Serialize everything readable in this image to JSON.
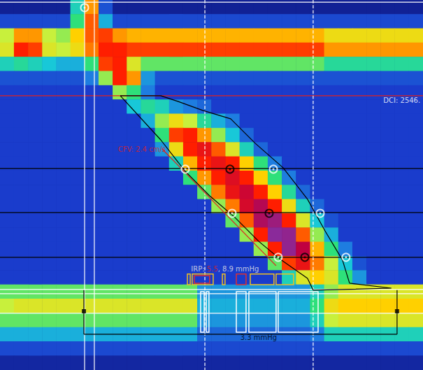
{
  "chart_data": {
    "type": "heatmap",
    "tick_labels": false,
    "xlim": [
      0,
      30
    ],
    "ylim": [
      26,
      0
    ],
    "color_range": [
      0,
      150
    ],
    "cells": [
      [
        6,
        6,
        6,
        6,
        6,
        50,
        100,
        20,
        6,
        6,
        6,
        6,
        6,
        6,
        6,
        6,
        6,
        6,
        6,
        6,
        6,
        6,
        6,
        6,
        6,
        6,
        6,
        6,
        6,
        6
      ],
      [
        18,
        18,
        18,
        18,
        18,
        60,
        110,
        40,
        18,
        18,
        18,
        18,
        18,
        18,
        18,
        18,
        18,
        18,
        18,
        18,
        18,
        18,
        18,
        18,
        18,
        18,
        18,
        18,
        18,
        18
      ],
      [
        75,
        100,
        100,
        75,
        70,
        90,
        110,
        115,
        100,
        95,
        95,
        95,
        95,
        95,
        95,
        95,
        95,
        95,
        95,
        95,
        95,
        95,
        95,
        85,
        85,
        85,
        85,
        85,
        85,
        85
      ],
      [
        80,
        120,
        115,
        80,
        75,
        85,
        105,
        120,
        120,
        115,
        115,
        115,
        115,
        115,
        115,
        115,
        115,
        115,
        115,
        115,
        115,
        115,
        115,
        100,
        100,
        100,
        100,
        100,
        100,
        100
      ],
      [
        50,
        55,
        50,
        45,
        40,
        40,
        60,
        115,
        120,
        80,
        65,
        65,
        65,
        65,
        65,
        65,
        65,
        65,
        65,
        65,
        65,
        65,
        65,
        55,
        55,
        55,
        55,
        55,
        55,
        55
      ],
      [
        20,
        20,
        20,
        20,
        20,
        20,
        30,
        70,
        120,
        100,
        35,
        20,
        20,
        20,
        20,
        20,
        20,
        20,
        20,
        20,
        20,
        20,
        20,
        20,
        20,
        20,
        20,
        20,
        20,
        20
      ],
      [
        15,
        15,
        15,
        15,
        15,
        15,
        15,
        15,
        70,
        60,
        30,
        15,
        15,
        15,
        15,
        15,
        15,
        15,
        15,
        15,
        15,
        15,
        15,
        15,
        15,
        15,
        15,
        15,
        15,
        15
      ],
      [
        15,
        15,
        15,
        15,
        15,
        15,
        15,
        15,
        15,
        45,
        55,
        50,
        35,
        30,
        25,
        15,
        15,
        15,
        15,
        15,
        15,
        15,
        15,
        15,
        15,
        15,
        15,
        15,
        15,
        15
      ],
      [
        15,
        15,
        15,
        15,
        15,
        15,
        15,
        15,
        15,
        15,
        40,
        70,
        85,
        75,
        55,
        40,
        30,
        15,
        15,
        15,
        15,
        15,
        15,
        15,
        15,
        15,
        15,
        15,
        15,
        15
      ],
      [
        15,
        15,
        15,
        15,
        15,
        15,
        15,
        15,
        15,
        15,
        15,
        60,
        115,
        120,
        100,
        70,
        45,
        25,
        15,
        15,
        15,
        15,
        15,
        15,
        15,
        15,
        15,
        15,
        15,
        15
      ],
      [
        15,
        15,
        15,
        15,
        15,
        15,
        15,
        15,
        15,
        15,
        15,
        35,
        85,
        120,
        125,
        110,
        80,
        50,
        25,
        15,
        15,
        15,
        15,
        15,
        15,
        15,
        15,
        15,
        15,
        15
      ],
      [
        15,
        15,
        15,
        15,
        15,
        15,
        15,
        15,
        15,
        15,
        15,
        15,
        50,
        95,
        120,
        125,
        120,
        90,
        60,
        30,
        15,
        15,
        15,
        15,
        15,
        15,
        15,
        15,
        15,
        15
      ],
      [
        15,
        15,
        15,
        15,
        15,
        15,
        15,
        15,
        15,
        15,
        15,
        15,
        15,
        60,
        100,
        120,
        128,
        120,
        90,
        60,
        30,
        15,
        15,
        15,
        15,
        15,
        15,
        15,
        15,
        15
      ],
      [
        15,
        15,
        15,
        15,
        15,
        15,
        15,
        15,
        15,
        15,
        15,
        15,
        15,
        15,
        65,
        105,
        125,
        132,
        120,
        90,
        55,
        25,
        15,
        15,
        15,
        15,
        15,
        15,
        15,
        15
      ],
      [
        15,
        15,
        15,
        15,
        15,
        15,
        15,
        15,
        15,
        15,
        15,
        15,
        15,
        15,
        15,
        70,
        105,
        130,
        138,
        120,
        85,
        50,
        25,
        15,
        15,
        15,
        15,
        15,
        15,
        15
      ],
      [
        15,
        15,
        15,
        15,
        15,
        15,
        15,
        15,
        15,
        15,
        15,
        15,
        15,
        15,
        15,
        15,
        65,
        110,
        140,
        145,
        120,
        80,
        45,
        20,
        15,
        15,
        15,
        15,
        15,
        15
      ],
      [
        15,
        15,
        15,
        15,
        15,
        15,
        15,
        15,
        15,
        15,
        15,
        15,
        15,
        15,
        15,
        15,
        15,
        70,
        120,
        150,
        148,
        110,
        70,
        40,
        15,
        15,
        15,
        15,
        15,
        15
      ],
      [
        15,
        15,
        15,
        15,
        15,
        15,
        15,
        15,
        15,
        15,
        15,
        15,
        15,
        15,
        15,
        15,
        15,
        15,
        70,
        120,
        148,
        135,
        95,
        60,
        30,
        15,
        15,
        15,
        15,
        15
      ],
      [
        15,
        15,
        15,
        15,
        15,
        15,
        15,
        15,
        15,
        15,
        15,
        15,
        15,
        15,
        15,
        15,
        15,
        15,
        15,
        65,
        115,
        125,
        105,
        75,
        45,
        20,
        15,
        15,
        15,
        15
      ],
      [
        15,
        15,
        15,
        15,
        15,
        15,
        15,
        15,
        15,
        15,
        15,
        15,
        15,
        15,
        15,
        15,
        15,
        15,
        15,
        15,
        50,
        80,
        90,
        80,
        60,
        35,
        15,
        15,
        15,
        15
      ],
      [
        65,
        65,
        65,
        65,
        65,
        65,
        65,
        65,
        65,
        65,
        65,
        65,
        65,
        65,
        35,
        35,
        35,
        35,
        35,
        35,
        35,
        35,
        50,
        70,
        80,
        80,
        80,
        80,
        80,
        80
      ],
      [
        75,
        80,
        80,
        80,
        80,
        80,
        80,
        80,
        80,
        80,
        80,
        80,
        80,
        80,
        40,
        40,
        40,
        40,
        40,
        40,
        40,
        40,
        60,
        85,
        90,
        90,
        90,
        90,
        90,
        90
      ],
      [
        65,
        65,
        65,
        65,
        65,
        65,
        65,
        65,
        65,
        65,
        65,
        65,
        65,
        65,
        35,
        35,
        35,
        35,
        35,
        35,
        35,
        35,
        50,
        75,
        80,
        80,
        80,
        80,
        80,
        80
      ],
      [
        40,
        40,
        40,
        40,
        40,
        40,
        40,
        40,
        40,
        40,
        40,
        40,
        40,
        40,
        25,
        25,
        25,
        25,
        25,
        25,
        25,
        25,
        30,
        50,
        50,
        50,
        50,
        50,
        50,
        50
      ],
      [
        18,
        18,
        18,
        18,
        18,
        18,
        18,
        18,
        18,
        18,
        18,
        18,
        18,
        18,
        18,
        18,
        18,
        18,
        18,
        18,
        18,
        18,
        18,
        18,
        18,
        18,
        18,
        18,
        18,
        18
      ],
      [
        8,
        8,
        8,
        8,
        8,
        8,
        8,
        8,
        8,
        8,
        8,
        8,
        8,
        8,
        8,
        8,
        8,
        8,
        8,
        8,
        8,
        8,
        8,
        8,
        8,
        8,
        8,
        8,
        8,
        8
      ]
    ],
    "lines": [
      {
        "x": [
          0,
          30
        ],
        "y": [
          0.15,
          0.15
        ],
        "color": "#ffffff",
        "line_style": "solid"
      },
      {
        "x": [
          0,
          30
        ],
        "y": [
          6.73,
          6.73
        ],
        "color": "#e02020",
        "line_style": "solid"
      },
      {
        "x": [
          0,
          30
        ],
        "y": [
          11.84,
          11.84
        ],
        "color": "#000000",
        "line_style": "solid"
      },
      {
        "x": [
          0,
          30
        ],
        "y": [
          14.94,
          14.94
        ],
        "color": "#000000",
        "line_style": "solid"
      },
      {
        "x": [
          0,
          30
        ],
        "y": [
          18.08,
          18.08
        ],
        "color": "#000000",
        "line_style": "solid"
      },
      {
        "x": [
          0,
          30
        ],
        "y": [
          20.34,
          20.34
        ],
        "color": "#ffffff",
        "line_style": "solid"
      },
      {
        "x": [
          0,
          30
        ],
        "y": [
          20.64,
          20.64
        ],
        "color": "#ffffff",
        "line_style": "solid"
      },
      {
        "x": [
          0,
          30
        ],
        "y": [
          22.01,
          22.01
        ],
        "color": "#ffffff",
        "line_style": "solid"
      },
      {
        "x": [
          6.0,
          6.0
        ],
        "y": [
          0,
          26
        ],
        "color": "#ffffff",
        "line_style": "solid"
      },
      {
        "x": [
          6.69,
          6.69
        ],
        "y": [
          0,
          26
        ],
        "color": "#ffffff",
        "line_style": "solid"
      },
      {
        "x": [
          14.53,
          14.53
        ],
        "y": [
          0,
          26
        ],
        "color": "#ffffff",
        "line_style": "dashed"
      },
      {
        "x": [
          22.21,
          22.21
        ],
        "y": [
          0,
          26
        ],
        "color": "#ffffff",
        "line_style": "dashed"
      },
      {
        "x": [
          8.53,
          11.4,
          13.14,
          14.87,
          16.61,
          18.34,
          19.83,
          21.81,
          22.21,
          27.76,
          24.79,
          24.29,
          23.05,
          21.81,
          20.08,
          18.1,
          16.36,
          14.38,
          12.64,
          11.4,
          8.53
        ],
        "y": [
          6.73,
          9.83,
          12.04,
          13.76,
          15.23,
          16.95,
          18.18,
          19.56,
          20.39,
          20.25,
          19.9,
          18.28,
          16.22,
          14.0,
          11.79,
          10.07,
          8.35,
          7.76,
          7.13,
          6.73,
          6.73
        ],
        "color": "#000000",
        "line_style": "solid"
      },
      {
        "x": [
          11.5,
          19.58
        ],
        "y": [
          10.47,
          18.67
        ],
        "color": "#e02020",
        "line_style": "solid"
      },
      {
        "x": [
          5.95,
          5.95
        ],
        "y": [
          20.39,
          23.49
        ],
        "color": "#000000",
        "line_style": "solid"
      },
      {
        "x": [
          28.16,
          28.16
        ],
        "y": [
          20.39,
          23.49
        ],
        "color": "#000000",
        "line_style": "solid"
      },
      {
        "x": [
          5.95,
          28.16
        ],
        "y": [
          23.49,
          23.49
        ],
        "color": "#000000",
        "line_style": "solid"
      }
    ],
    "boxes": [
      {
        "x": [
          13.29,
          13.49
        ],
        "y": [
          19.26,
          20.0
        ],
        "color": "#f0c020"
      },
      {
        "x": [
          13.63,
          15.12
        ],
        "y": [
          19.26,
          20.0
        ],
        "color": "#f0c020"
      },
      {
        "x": [
          13.78,
          14.87
        ],
        "y": [
          19.36,
          19.9
        ],
        "color": "#e03030"
      },
      {
        "x": [
          15.77,
          15.96
        ],
        "y": [
          19.26,
          20.0
        ],
        "color": "#f0c020"
      },
      {
        "x": [
          16.76,
          17.45
        ],
        "y": [
          19.26,
          20.0
        ],
        "color": "#e03030"
      },
      {
        "x": [
          17.75,
          19.43
        ],
        "y": [
          19.26,
          20.0
        ],
        "color": "#f0c020"
      },
      {
        "x": [
          19.58,
          20.82
        ],
        "y": [
          19.26,
          20.0
        ],
        "color": "#f0c020"
      },
      {
        "x": [
          14.23,
          14.48
        ],
        "y": [
          20.49,
          23.34
        ],
        "color": "#ffffff"
      },
      {
        "x": [
          14.63,
          14.82
        ],
        "y": [
          20.49,
          23.34
        ],
        "color": "#ffffff"
      },
      {
        "x": [
          16.76,
          17.45
        ],
        "y": [
          20.49,
          23.34
        ],
        "color": "#ffffff"
      },
      {
        "x": [
          17.65,
          19.58
        ],
        "y": [
          20.49,
          23.34
        ],
        "color": "#ffffff"
      },
      {
        "x": [
          19.73,
          22.56
        ],
        "y": [
          20.49,
          23.34
        ],
        "color": "#ffffff"
      }
    ],
    "markers": [
      {
        "x": 6.0,
        "y": 0.54,
        "color": "#ffffff",
        "marker": "circle"
      },
      {
        "x": 13.14,
        "y": 11.89,
        "color": "#ffffff",
        "marker": "circle"
      },
      {
        "x": 16.31,
        "y": 11.89,
        "color": "#000000",
        "marker": "circle"
      },
      {
        "x": 19.39,
        "y": 11.89,
        "color": "#ffffff",
        "marker": "circle"
      },
      {
        "x": 16.46,
        "y": 14.99,
        "color": "#ffffff",
        "marker": "circle"
      },
      {
        "x": 19.09,
        "y": 14.99,
        "color": "#000000",
        "marker": "circle"
      },
      {
        "x": 22.71,
        "y": 14.99,
        "color": "#ffffff",
        "marker": "circle"
      },
      {
        "x": 19.73,
        "y": 18.08,
        "color": "#ffffff",
        "marker": "circle"
      },
      {
        "x": 21.62,
        "y": 18.08,
        "color": "#000000",
        "marker": "circle"
      },
      {
        "x": 24.54,
        "y": 18.08,
        "color": "#ffffff",
        "marker": "circle"
      },
      {
        "x": 5.95,
        "y": 21.87,
        "color": "#000000",
        "marker": "square"
      },
      {
        "x": 28.16,
        "y": 21.87,
        "color": "#000000",
        "marker": "square"
      }
    ],
    "annotations": [
      {
        "x": 28.5,
        "y": 7.03,
        "parts": [
          {
            "text": "DCI: 2546.",
            "color": "#ffffff"
          }
        ]
      },
      {
        "x": 10.06,
        "y": 10.47,
        "parts": [
          {
            "text": "CFV: 2.4 cm/s",
            "color": "#e02020"
          }
        ]
      },
      {
        "x": 15.96,
        "y": 18.92,
        "parts": [
          {
            "text": "IRP: ",
            "color": "#e8e8e8"
          },
          {
            "text": "5.5",
            "color": "#e02020"
          },
          {
            "text": ", 8.9 mmHg",
            "color": "#e8e8e8"
          }
        ]
      },
      {
        "x": 18.34,
        "y": 23.69,
        "parts": [
          {
            "text": "3.3 mmHg",
            "color": "#000000"
          }
        ]
      }
    ]
  }
}
